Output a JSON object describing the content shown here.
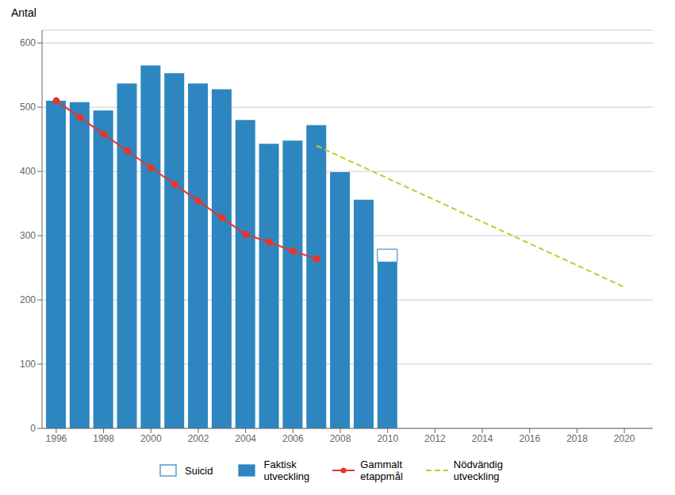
{
  "chart_data": {
    "type": "bar",
    "y_label": "Antal",
    "xlim": [
      1995.4,
      2021.2
    ],
    "xticks": [
      1996,
      1998,
      2000,
      2002,
      2004,
      2006,
      2008,
      2010,
      2012,
      2014,
      2016,
      2018,
      2020
    ],
    "ylim": [
      0,
      620
    ],
    "yticks": [
      0,
      100,
      200,
      300,
      400,
      500,
      600
    ],
    "grid": true,
    "legend": "bottom",
    "series": [
      {
        "name": "Suicid",
        "type": "bar",
        "color": "#FFFFFF",
        "x": [
          2010
        ],
        "values": [
          20
        ]
      },
      {
        "name": "Faktisk\nutveckling",
        "type": "bar",
        "color": "#2E86C1",
        "x": [
          1996,
          1997,
          1998,
          1999,
          2000,
          2001,
          2002,
          2003,
          2004,
          2005,
          2006,
          2007,
          2008,
          2009,
          2010
        ],
        "values": [
          510,
          508,
          495,
          537,
          565,
          553,
          537,
          528,
          480,
          443,
          448,
          472,
          399,
          356,
          279
        ]
      },
      {
        "name": "Gammalt\netappmål",
        "type": "line",
        "color": "#E8352A",
        "marker": "circle",
        "line_style": "solid",
        "x": [
          1996,
          1997,
          1998,
          1999,
          2000,
          2001,
          2002,
          2003,
          2004,
          2005,
          2006,
          2007
        ],
        "values": [
          510,
          484,
          458,
          432,
          406,
          380,
          354,
          328,
          302,
          290,
          276,
          264
        ]
      },
      {
        "name": "Nödvändig\nutveckling",
        "type": "line",
        "color": "#BECE2A",
        "line_style": "dashed",
        "x": [
          2007,
          2020
        ],
        "values": [
          440,
          220
        ]
      }
    ]
  }
}
